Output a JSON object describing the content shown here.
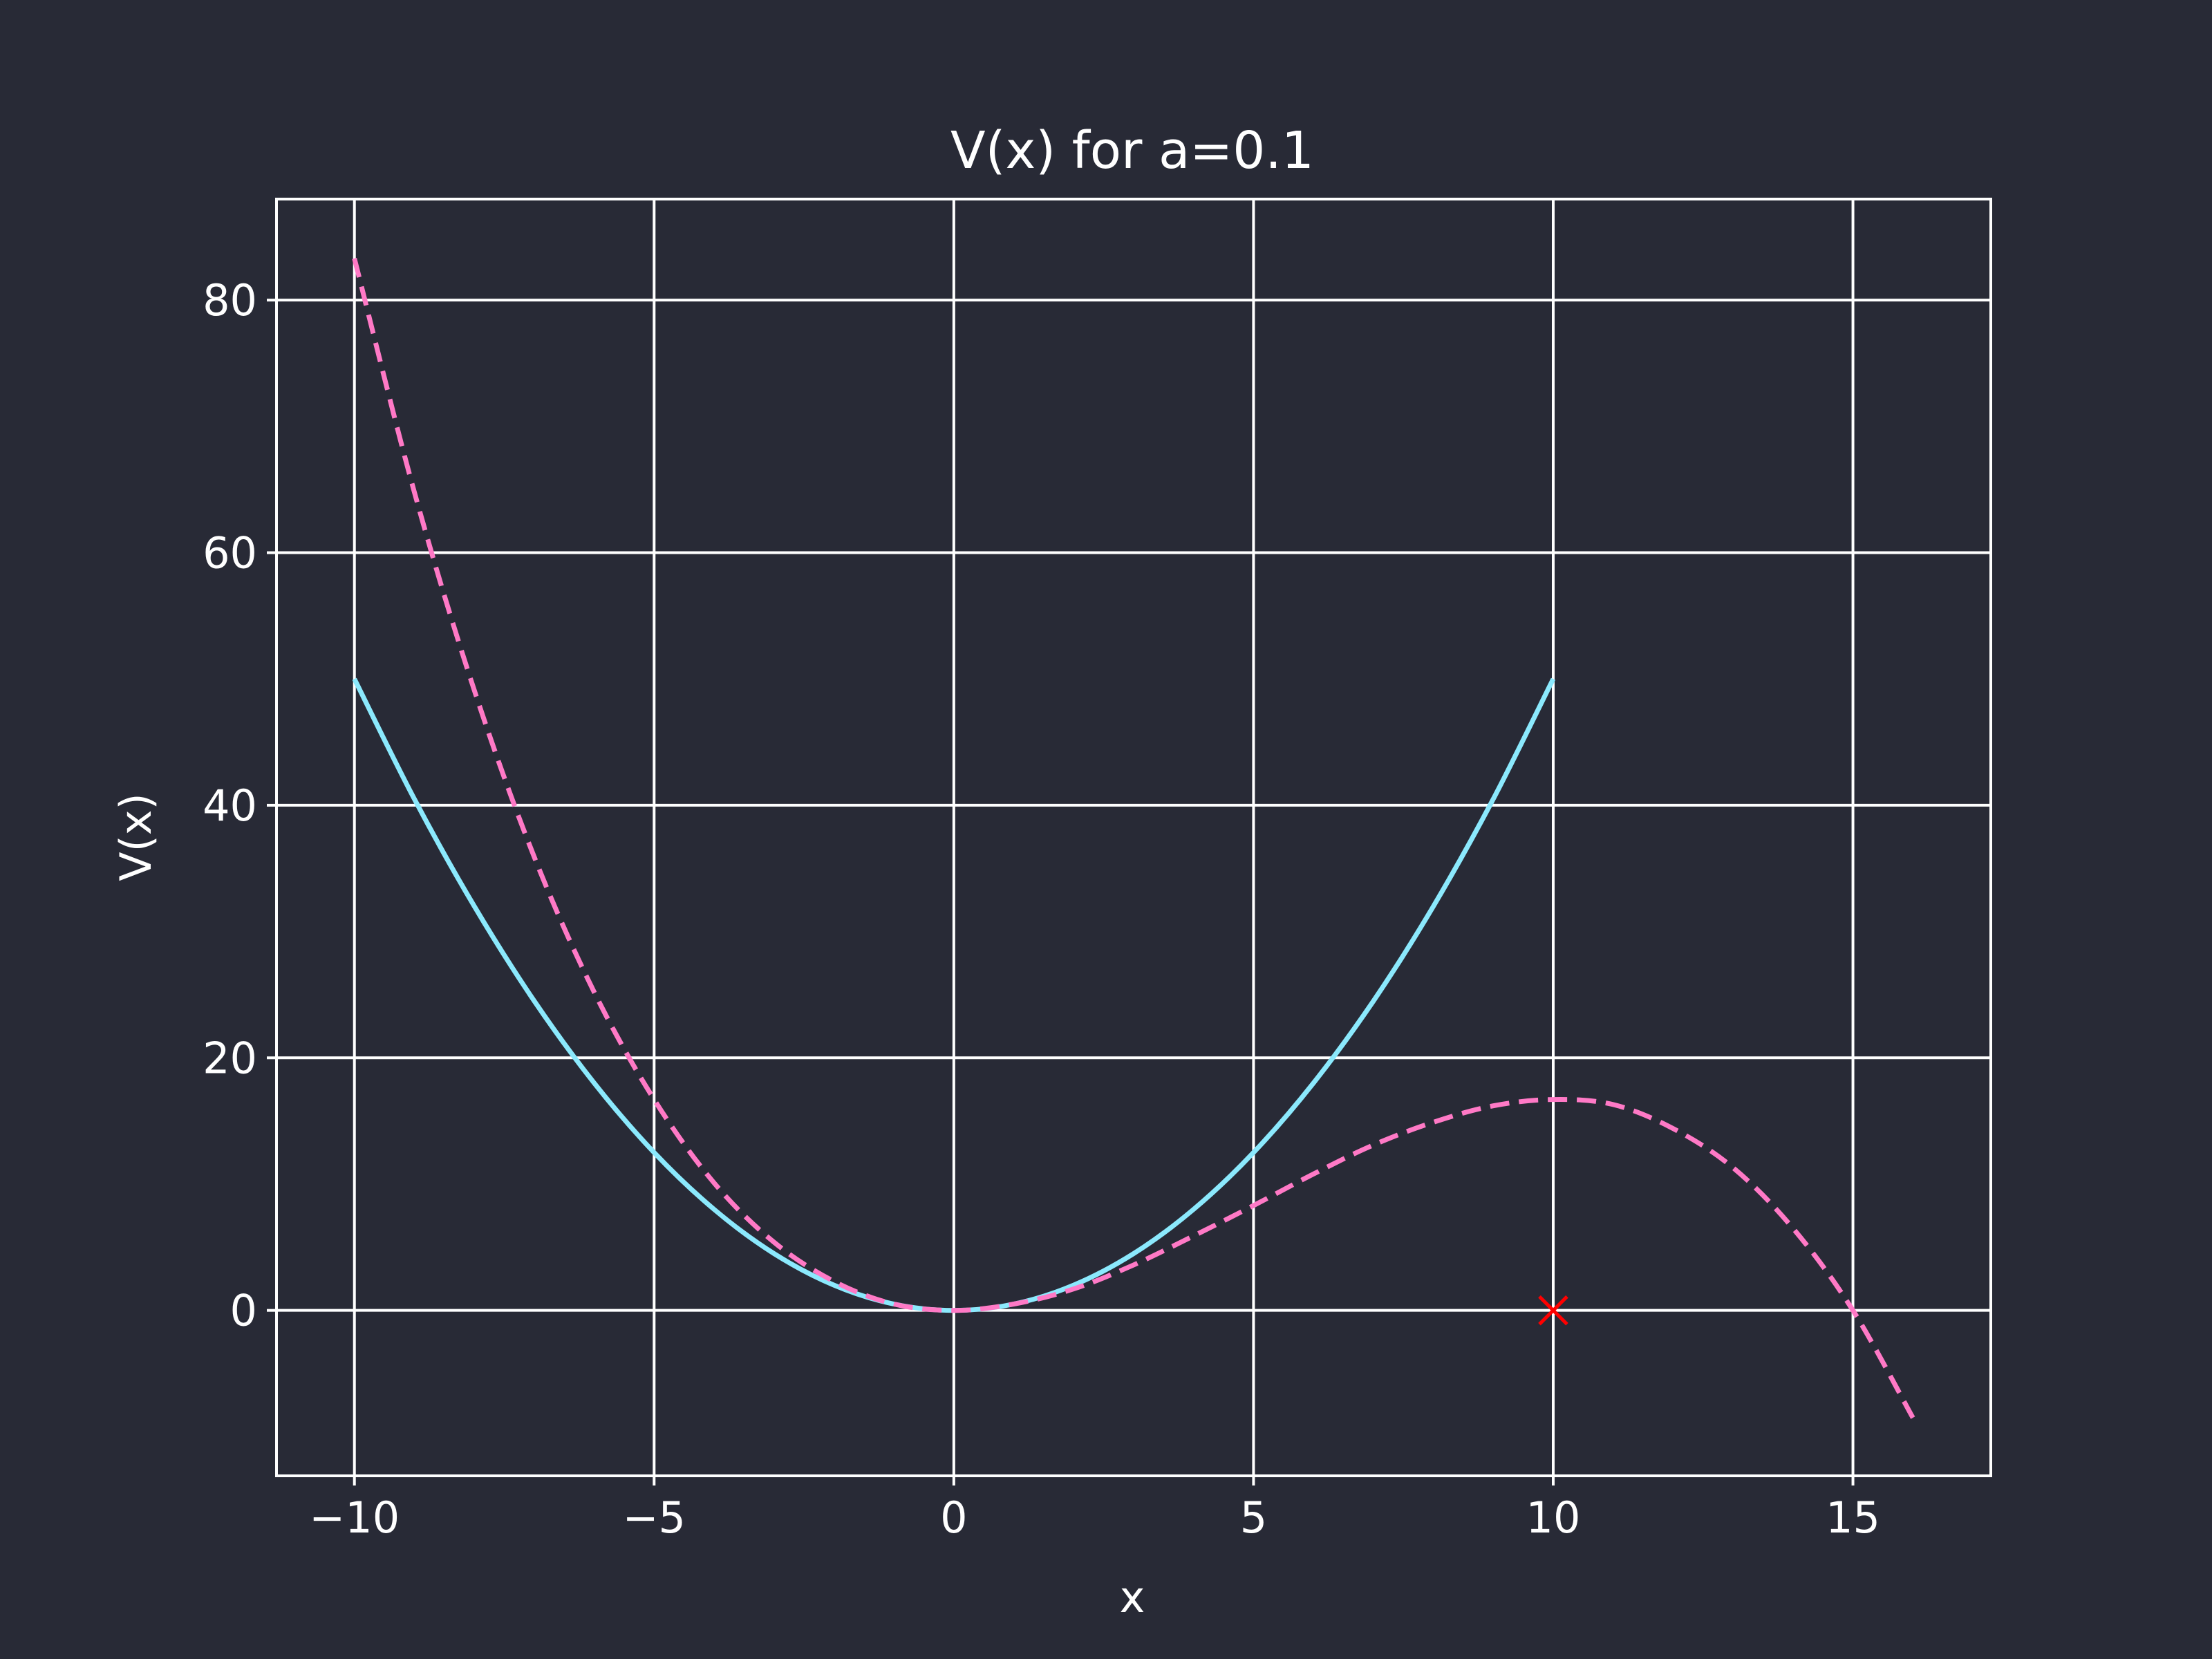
{
  "chart_data": {
    "type": "line",
    "title": "V(x) for a=0.1",
    "xlabel": "x",
    "ylabel": "V(x)",
    "xlim": [
      -11.3,
      17.3
    ],
    "ylim": [
      -13.1,
      88.0
    ],
    "x_ticks": [
      -10,
      -5,
      0,
      5,
      10,
      15
    ],
    "x_tick_labels": [
      "−10",
      "−5",
      "0",
      "5",
      "10",
      "15"
    ],
    "y_ticks": [
      0,
      20,
      40,
      60,
      80
    ],
    "y_tick_labels": [
      "0",
      "20",
      "40",
      "60",
      "80"
    ],
    "grid": true,
    "series": [
      {
        "style": "solid",
        "color": "#8be9fd",
        "x": [
          -10,
          -9,
          -8,
          -7,
          -6,
          -5,
          -4,
          -3,
          -2,
          -1,
          0,
          1,
          2,
          3,
          4,
          5,
          6,
          7,
          8,
          9,
          10
        ],
        "y": [
          50,
          40.5,
          32,
          24.5,
          18,
          12.5,
          8,
          4.5,
          2,
          0.5,
          0,
          0.5,
          2,
          4.5,
          8,
          12.5,
          18,
          24.5,
          32,
          40.5,
          50
        ]
      },
      {
        "style": "dashed",
        "color": "#ff79c6",
        "x": [
          -10,
          -9,
          -8,
          -7,
          -6,
          -5,
          -4,
          -3,
          -2,
          -1,
          0,
          1,
          2,
          3,
          4,
          5,
          6,
          7,
          8,
          9,
          10,
          11,
          12,
          13,
          14,
          15,
          16
        ],
        "y": [
          83.3,
          64.8,
          49.1,
          35.9,
          25.2,
          16.7,
          10.1,
          5.4,
          2.3,
          0.5,
          0,
          0.5,
          1.7,
          3.6,
          5.9,
          8.3,
          10.8,
          13.1,
          14.9,
          16.2,
          16.7,
          16.3,
          14.4,
          11.3,
          6.5,
          0,
          -8.5
        ]
      }
    ],
    "markers": [
      {
        "x": 10,
        "y": 0,
        "symbol": "x",
        "color": "#ff0000"
      }
    ],
    "colors": {
      "background": "#282a36",
      "foreground": "#ffffff",
      "grid": "#ffffff"
    }
  }
}
